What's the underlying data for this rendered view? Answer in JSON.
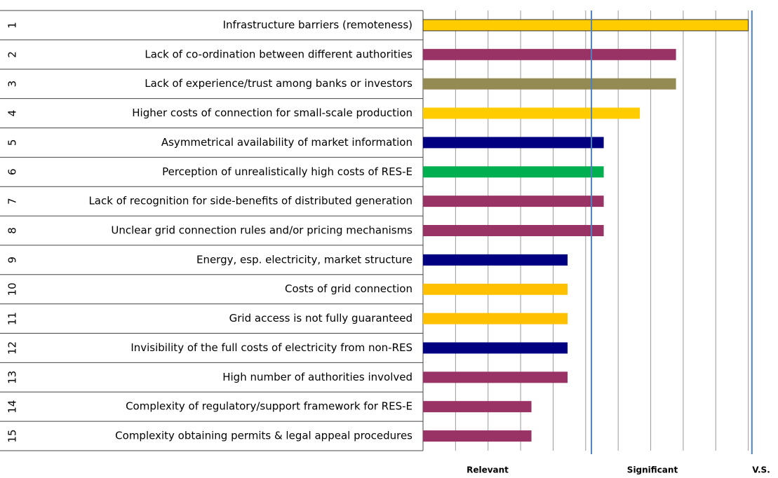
{
  "chart_data": {
    "type": "bar",
    "orientation": "horizontal",
    "ranks": [
      "1",
      "2",
      "3",
      "4",
      "5",
      "6",
      "7",
      "8",
      "9",
      "10",
      "11",
      "12",
      "13",
      "14",
      "15"
    ],
    "categories": [
      "Infrastructure barriers (remoteness)",
      "Lack of co-ordination between different authorities",
      "Lack of experience/trust among banks or investors",
      "Higher costs of connection for small-scale production",
      "Asymmetrical availability of market information",
      "Perception of unrealistically high costs of RES-E",
      "Lack of recognition for side-benefits of distributed generation",
      "Unclear grid connection rules and/or pricing mechanisms",
      "Energy, esp. electricity, market structure",
      "Costs of grid connection",
      "Grid access is not fully guaranteed",
      "Invisibility of the full costs of electricity from non-RES",
      "High number of authorities involved",
      "Complexity of regulatory/support framework for RES-E",
      "Complexity obtaining permits & legal appeal procedures"
    ],
    "values": [
      9,
      7,
      7,
      6,
      5,
      5,
      5,
      5,
      4,
      4,
      4,
      4,
      4,
      3,
      3
    ],
    "colors": [
      "#ffcc00",
      "#993366",
      "#948a54",
      "#ffcc00",
      "#000080",
      "#00b050",
      "#993366",
      "#993366",
      "#000080",
      "#ffc000",
      "#ffc000",
      "#000080",
      "#993366",
      "#993366",
      "#993366"
    ],
    "xlim": [
      0,
      9.9
    ],
    "xticks": [
      0,
      0.9,
      1.8,
      2.7,
      3.6,
      4.5,
      5.4,
      6.3,
      7.2,
      8.1,
      9,
      9.9
    ],
    "grid": true,
    "thresholds": [
      4.66,
      9.1
    ],
    "threshold_color": "#4f81bd",
    "zones": [
      "Relevant",
      "Significant",
      "V.S."
    ]
  }
}
